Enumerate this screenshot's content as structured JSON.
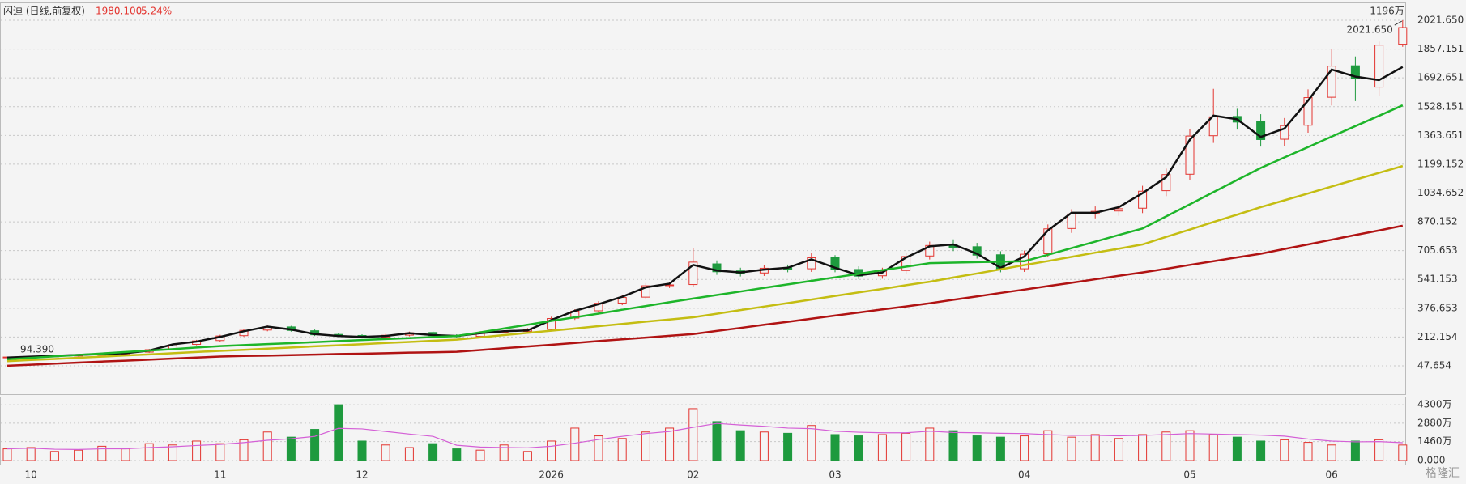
{
  "chart_data": [
    {
      "type": "candlestick",
      "title": "闪迪 (日线,前复权)",
      "price": "1980.100",
      "change": "5.24%",
      "up_color": "#e3342f",
      "down_color": "#1e9a3e",
      "open": [
        96,
        98,
        101,
        104,
        111,
        113,
        126,
        142,
        170,
        192,
        220,
        252,
        270,
        248,
        227,
        221,
        211,
        223,
        238,
        221,
        216,
        240,
        244,
        256,
        320,
        362,
        406,
        440,
        507,
        512,
        630,
        590,
        578,
        608,
        602,
        668,
        598,
        562,
        592,
        675,
        738,
        728,
        682,
        602,
        688,
        832,
        918,
        932,
        948,
        1048,
        1142,
        1362,
        1472,
        1442,
        1342,
        1422,
        1582,
        1762,
        1640,
        1885
      ],
      "high": [
        100,
        104,
        107,
        113,
        117,
        128,
        144,
        173,
        196,
        225,
        258,
        278,
        276,
        255,
        234,
        228,
        229,
        243,
        245,
        228,
        245,
        250,
        263,
        328,
        371,
        417,
        451,
        520,
        525,
        720,
        650,
        608,
        623,
        626,
        690,
        680,
        616,
        608,
        692,
        757,
        770,
        750,
        702,
        706,
        855,
        942,
        958,
        973,
        1076,
        1174,
        1401,
        1630,
        1516,
        1485,
        1463,
        1627,
        1860,
        1815,
        1900,
        2021.65
      ],
      "low": [
        94.39,
        96,
        99,
        101,
        108,
        110,
        122,
        138,
        165,
        186,
        213,
        245,
        243,
        218,
        213,
        204,
        205,
        216,
        213,
        209,
        210,
        233,
        237,
        248,
        310,
        351,
        394,
        427,
        492,
        497,
        567,
        558,
        561,
        582,
        584,
        582,
        543,
        545,
        574,
        655,
        703,
        660,
        582,
        584,
        667,
        807,
        890,
        904,
        920,
        1017,
        1108,
        1321,
        1397,
        1300,
        1302,
        1379,
        1535,
        1560,
        1590,
        1870
      ],
      "close": [
        98,
        101,
        104,
        110,
        113,
        124,
        140,
        168,
        190,
        218,
        250,
        268,
        250,
        225,
        220,
        210,
        222,
        236,
        220,
        215,
        238,
        242,
        255,
        318,
        360,
        405,
        438,
        505,
        510,
        640,
        585,
        575,
        605,
        600,
        665,
        600,
        560,
        590,
        672,
        735,
        725,
        680,
        600,
        685,
        830,
        915,
        930,
        945,
        1045,
        1140,
        1360,
        1470,
        1440,
        1340,
        1420,
        1580,
        1760,
        1690,
        1880,
        1980.1
      ],
      "series": [
        {
          "color": "#111111",
          "values": [
            95,
            100,
            105,
            110,
            115,
            120,
            135,
            170,
            186,
            213,
            245,
            272,
            255,
            229,
            218,
            213,
            218,
            234,
            223,
            218,
            234,
            245,
            250,
            309,
            362,
            400,
            442,
            496,
            517,
            624,
            592,
            581,
            597,
            608,
            656,
            608,
            565,
            581,
            666,
            730,
            741,
            688,
            608,
            672,
            821,
            922,
            922,
            954,
            1034,
            1125,
            1339,
            1477,
            1456,
            1355,
            1403,
            1563,
            1740,
            1700,
            1680,
            1755
          ]
        },
        {
          "color": "#1db52a",
          "values": [
            85,
            93,
            102,
            110,
            118,
            127,
            135,
            143,
            152,
            160,
            166,
            172,
            177,
            183,
            189,
            195,
            201,
            206,
            212,
            218,
            239,
            261,
            282,
            304,
            325,
            346,
            368,
            389,
            411,
            432,
            452,
            472,
            493,
            513,
            533,
            553,
            573,
            594,
            614,
            634,
            637,
            640,
            642,
            645,
            682,
            720,
            757,
            795,
            832,
            901,
            970,
            1040,
            1109,
            1178,
            1238,
            1297,
            1357,
            1417,
            1476,
            1536
          ]
        },
        {
          "color": "#c4bd12",
          "values": [
            74,
            81,
            87,
            94,
            100,
            107,
            113,
            120,
            127,
            133,
            139,
            146,
            152,
            159,
            165,
            171,
            178,
            184,
            191,
            197,
            210,
            223,
            236,
            248,
            261,
            274,
            287,
            300,
            312,
            325,
            345,
            366,
            386,
            406,
            426,
            447,
            467,
            487,
            508,
            528,
            552,
            575,
            599,
            623,
            646,
            670,
            694,
            717,
            741,
            784,
            826,
            869,
            911,
            954,
            993,
            1032,
            1072,
            1111,
            1150,
            1189
          ]
        },
        {
          "color": "#b01313",
          "values": [
            48,
            54,
            60,
            66,
            72,
            77,
            83,
            89,
            95,
            101,
            104,
            106,
            109,
            112,
            115,
            117,
            120,
            123,
            125,
            128,
            138,
            148,
            158,
            168,
            178,
            189,
            199,
            209,
            219,
            229,
            247,
            264,
            282,
            299,
            317,
            335,
            352,
            370,
            387,
            405,
            425,
            444,
            464,
            483,
            503,
            522,
            542,
            562,
            581,
            602,
            624,
            645,
            667,
            688,
            715,
            741,
            768,
            795,
            821,
            848
          ]
        }
      ],
      "annotations": [
        "2021.650",
        "94.390"
      ],
      "ylim": [
        -105,
        2068
      ],
      "yticks": [
        {
          "value": 47.654,
          "label": "47.654"
        },
        {
          "value": 212.154,
          "label": "212.154"
        },
        {
          "value": 376.653,
          "label": "376.653"
        },
        {
          "value": 541.153,
          "label": "541.153"
        },
        {
          "value": 705.653,
          "label": "705.653"
        },
        {
          "value": 870.152,
          "label": "870.152"
        },
        {
          "value": 1034.652,
          "label": "1034.652"
        },
        {
          "value": 1199.152,
          "label": "1199.152"
        },
        {
          "value": 1363.651,
          "label": "1363.651"
        },
        {
          "value": 1528.151,
          "label": "1528.151"
        },
        {
          "value": 1692.651,
          "label": "1692.651"
        },
        {
          "value": 1857.151,
          "label": "1857.151"
        },
        {
          "value": 2021.65,
          "label": "2021.650"
        }
      ],
      "grid": true
    },
    {
      "type": "bar",
      "categories": [
        null,
        "10",
        null,
        null,
        null,
        null,
        null,
        null,
        null,
        "11",
        null,
        null,
        null,
        null,
        null,
        "12",
        null,
        null,
        null,
        null,
        null,
        null,
        null,
        "2026",
        null,
        null,
        null,
        null,
        null,
        "02",
        null,
        null,
        null,
        null,
        null,
        "03",
        null,
        null,
        null,
        null,
        null,
        null,
        null,
        "04",
        null,
        null,
        null,
        null,
        null,
        null,
        "05",
        null,
        null,
        null,
        null,
        null,
        "06",
        null,
        null,
        null
      ],
      "values": [
        900,
        1000,
        700,
        800,
        1100,
        900,
        1300,
        1200,
        1500,
        1300,
        1600,
        2200,
        1800,
        2400,
        4300,
        1500,
        1200,
        1000,
        1300,
        900,
        800,
        1200,
        700,
        1500,
        2500,
        1900,
        1700,
        2200,
        2500,
        4000,
        3000,
        2300,
        2200,
        2100,
        2700,
        2000,
        1900,
        2000,
        2100,
        2500,
        2300,
        1900,
        1800,
        1900,
        2300,
        1800,
        2000,
        1700,
        2000,
        2200,
        2300,
        2000,
        1800,
        1500,
        1600,
        1400,
        1200,
        1500,
        1600,
        1196
      ],
      "series": [
        {
          "color": "#d45fd6",
          "values": [
            900,
            950,
            870,
            850,
            900,
            900,
            1000,
            1060,
            1160,
            1240,
            1380,
            1560,
            1680,
            1860,
            2480,
            2440,
            2240,
            2040,
            1860,
            1180,
            1040,
            1000,
            980,
            1100,
            1340,
            1620,
            1860,
            2080,
            2240,
            2560,
            2860,
            2740,
            2640,
            2500,
            2460,
            2260,
            2180,
            2140,
            2140,
            2260,
            2160,
            2140,
            2100,
            2080,
            2000,
            1940,
            1940,
            1900,
            1940,
            2000,
            2080,
            2040,
            2000,
            1960,
            1880,
            1660,
            1500,
            1440,
            1460,
            1372
          ]
        }
      ],
      "annotations": [
        "1196万"
      ],
      "ylim": [
        0,
        4870
      ],
      "yticks": [
        {
          "value": 0,
          "label": "0.000"
        },
        {
          "value": 1460,
          "label": "1460万"
        },
        {
          "value": 2880,
          "label": "2880万"
        },
        {
          "value": 4300,
          "label": "4300万"
        }
      ],
      "grid": true,
      "watermark": "格隆汇"
    }
  ]
}
